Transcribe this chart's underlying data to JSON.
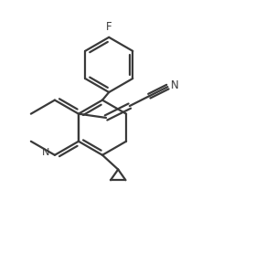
{
  "bg_color": "#ffffff",
  "line_color": "#3a3a3a",
  "line_width": 1.6,
  "figsize": [
    2.9,
    2.88
  ],
  "dpi": 100,
  "xlim": [
    0,
    10
  ],
  "ylim": [
    0,
    10
  ]
}
